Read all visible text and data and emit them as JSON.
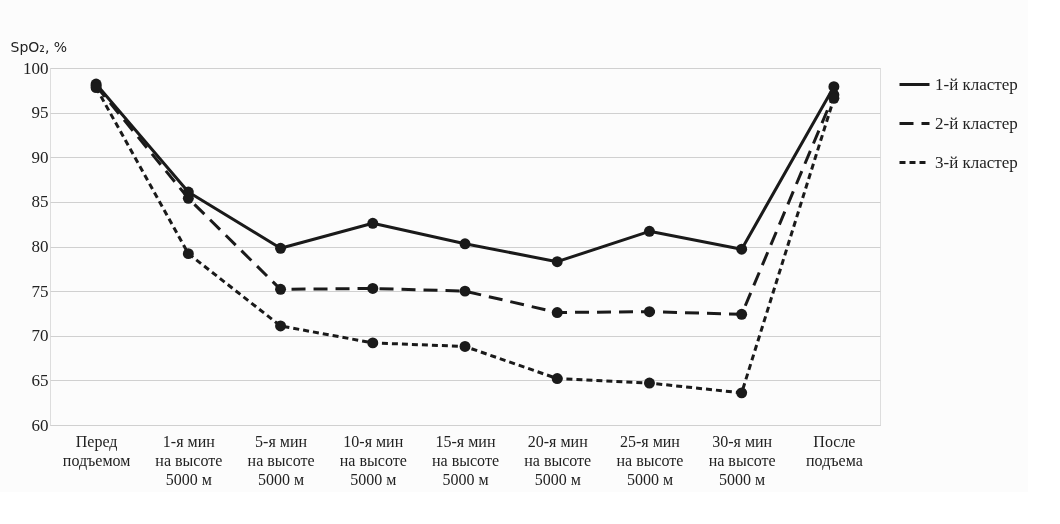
{
  "chart_data": {
    "type": "line",
    "ylabel": "SpO₂, %",
    "categories": [
      "Перед\nподъемом",
      "1-я мин\nна высоте\n5000 м",
      "5-я мин\nна высоте\n5000 м",
      "10-я мин\nна высоте\n5000 м",
      "15-я мин\nна высоте\n5000 м",
      "20-я мин\nна высоте\n5000 м",
      "25-я мин\nна высоте\n5000 м",
      "30-я мин\nна высоте\n5000 м",
      "После\nподъема"
    ],
    "series": [
      {
        "name": "1-й кластер",
        "color": "#1a1a1a",
        "line_style": "solid",
        "values": [
          98.2,
          86.1,
          79.8,
          82.6,
          80.3,
          78.3,
          81.7,
          79.7,
          97.9
        ]
      },
      {
        "name": "2-й кластер",
        "color": "#1a1a1a",
        "line_style": "dashed",
        "values": [
          98.0,
          85.4,
          75.2,
          75.3,
          75.0,
          72.6,
          72.7,
          72.4,
          97.0
        ]
      },
      {
        "name": "3-й кластер",
        "color": "#1a1a1a",
        "line_style": "dashed",
        "values": [
          97.8,
          79.2,
          71.1,
          69.2,
          68.8,
          65.2,
          64.7,
          63.6,
          96.6
        ]
      }
    ],
    "ylim": [
      60,
      100
    ],
    "yticks": [
      60,
      65,
      70,
      75,
      80,
      85,
      90,
      95,
      100
    ],
    "grid": "y",
    "legend": "right",
    "marker": "circle"
  }
}
